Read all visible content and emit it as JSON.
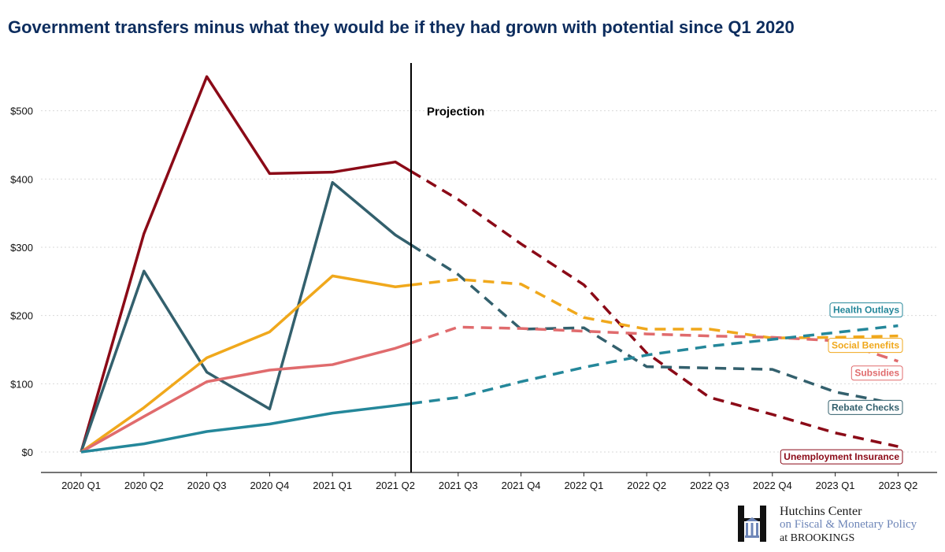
{
  "title": "Government transfers minus what they would be if they had grown with potential since Q1 2020",
  "logo": {
    "line1": "Hutchins Center",
    "line2": "on Fiscal & Monetary Policy",
    "line3": "at BROOKINGS"
  },
  "chart_data": {
    "type": "line",
    "categories": [
      "2020 Q1",
      "2020 Q2",
      "2020 Q3",
      "2020 Q4",
      "2021 Q1",
      "2021 Q2",
      "2021 Q3",
      "2021 Q4",
      "2022 Q1",
      "2022 Q2",
      "2022 Q3",
      "2022 Q4",
      "2023 Q1",
      "2023 Q2"
    ],
    "ylim": [
      -30,
      570
    ],
    "yticks": [
      0,
      100,
      200,
      300,
      400,
      500
    ],
    "ytick_labels": [
      "$0",
      "$100",
      "$200",
      "$300",
      "$400",
      "$500"
    ],
    "grid": true,
    "annotation": "Projection",
    "projection_start_index": 5,
    "series": [
      {
        "name": "Unemployment Insurance",
        "color": "#8b0a17",
        "values": [
          0,
          320,
          550,
          408,
          410,
          425,
          370,
          305,
          245,
          145,
          80,
          55,
          28,
          8
        ]
      },
      {
        "name": "Rebate Checks",
        "color": "#33606d",
        "values": [
          0,
          265,
          117,
          63,
          395,
          318,
          260,
          180,
          182,
          125,
          123,
          121,
          88,
          70
        ]
      },
      {
        "name": "Social Benefits",
        "color": "#f0a81c",
        "values": [
          0,
          65,
          138,
          176,
          258,
          242,
          253,
          246,
          197,
          180,
          180,
          167,
          168,
          170
        ]
      },
      {
        "name": "Subsidies",
        "color": "#e06b6d",
        "values": [
          0,
          52,
          103,
          120,
          128,
          152,
          183,
          181,
          177,
          173,
          170,
          168,
          163,
          133
        ]
      },
      {
        "name": "Health Outlays",
        "color": "#24879a",
        "values": [
          0,
          12,
          30,
          41,
          57,
          68,
          80,
          103,
          124,
          142,
          155,
          165,
          175,
          185
        ]
      }
    ]
  }
}
